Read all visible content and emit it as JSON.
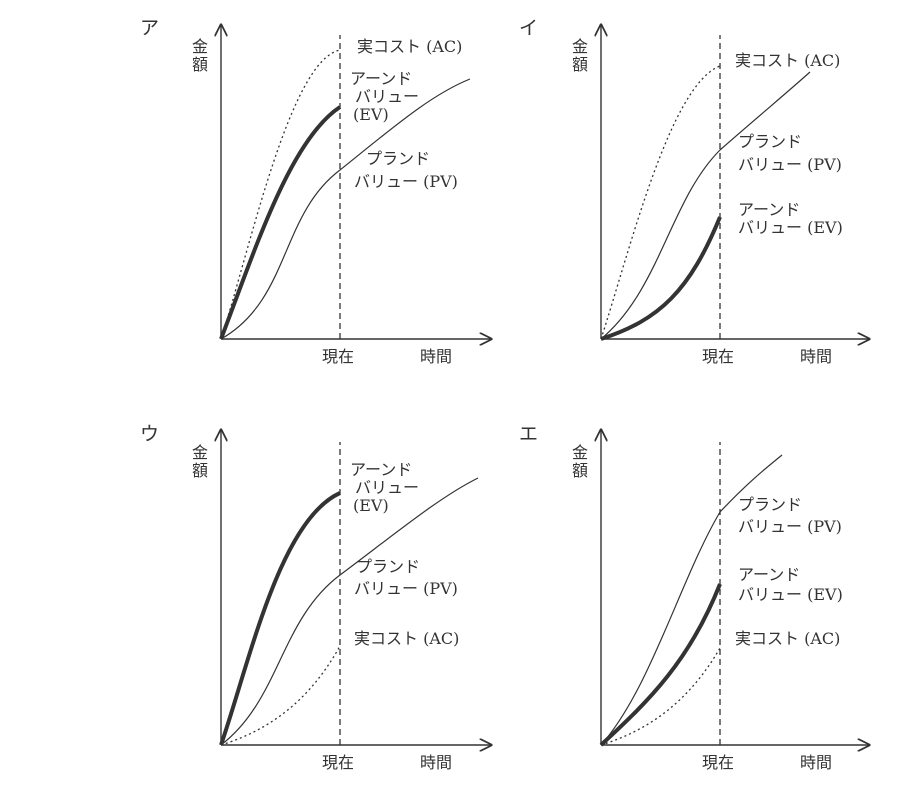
{
  "y_axis_label": "金額",
  "x_axis_label": "時間",
  "now_label": "現在",
  "panels": [
    {
      "letter": "ア",
      "pv_label": [
        "プランド",
        "バリュー (PV)"
      ],
      "ev_label": [
        "アーンド",
        "バリュー",
        "(EV)"
      ],
      "ac_label": [
        "実コスト (AC)"
      ],
      "order_at_now": [
        "AC",
        "EV",
        "PV"
      ]
    },
    {
      "letter": "イ",
      "pv_label": [
        "プランド",
        "バリュー (PV)"
      ],
      "ev_label": [
        "アーンド",
        "バリュー (EV)"
      ],
      "ac_label": [
        "実コスト (AC)"
      ],
      "order_at_now": [
        "AC",
        "PV",
        "EV"
      ]
    },
    {
      "letter": "ウ",
      "pv_label": [
        "プランド",
        "バリュー (PV)"
      ],
      "ev_label": [
        "アーンド",
        "バリュー",
        "(EV)"
      ],
      "ac_label": [
        "実コスト (AC)"
      ],
      "order_at_now": [
        "EV",
        "PV",
        "AC"
      ]
    },
    {
      "letter": "エ",
      "pv_label": [
        "プランド",
        "バリュー (PV)"
      ],
      "ev_label": [
        "アーンド",
        "バリュー (EV)"
      ],
      "ac_label": [
        "実コスト (AC)"
      ],
      "order_at_now": [
        "PV",
        "EV",
        "AC"
      ]
    }
  ],
  "legend_styles": {
    "pv": "thin solid line",
    "ev": "thick solid line",
    "ac": "dotted line"
  },
  "colors": {
    "ink": "#333333"
  }
}
